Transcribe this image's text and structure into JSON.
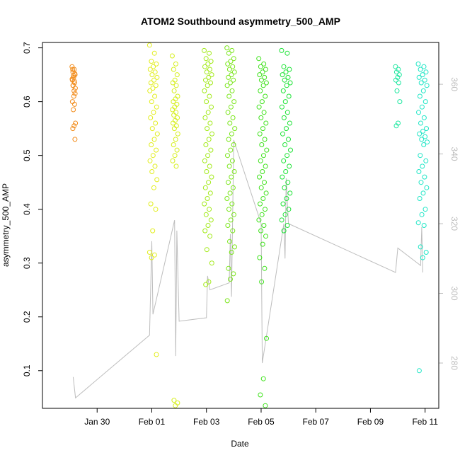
{
  "chart_data": {
    "type": "scatter",
    "title": "ATOM2 Southbound asymmetry_500_AMP",
    "xlabel": "Date",
    "ylabel": "asymmetry_500_AMP",
    "xlim": [
      "2025-01-28T00:00",
      "2025-02-11T12:00"
    ],
    "ylim": [
      0.03,
      0.71
    ],
    "x_ticks": [
      {
        "date": "2025-01-30",
        "label": "Jan 30"
      },
      {
        "date": "2025-02-01",
        "label": "Feb 01"
      },
      {
        "date": "2025-02-03",
        "label": "Feb 03"
      },
      {
        "date": "2025-02-05",
        "label": "Feb 05"
      },
      {
        "date": "2025-02-07",
        "label": "Feb 07"
      },
      {
        "date": "2025-02-09",
        "label": "Feb 09"
      },
      {
        "date": "2025-02-11",
        "label": "Feb 11"
      }
    ],
    "y_ticks": [
      0.1,
      0.2,
      0.3,
      0.4,
      0.5,
      0.6,
      0.7
    ],
    "y2_ticks": [
      280,
      300,
      320,
      340,
      360
    ],
    "y2lim": [
      267,
      372
    ],
    "clusters": [
      {
        "start": "2025-01-29T02:00",
        "end": "2025-01-29T05:00",
        "color": "#f28c1b",
        "values": [
          0.665,
          0.66,
          0.655,
          0.65,
          0.645,
          0.64,
          0.635,
          0.63,
          0.625,
          0.62,
          0.66,
          0.652,
          0.648,
          0.642,
          0.638,
          0.63,
          0.615,
          0.61,
          0.6,
          0.595,
          0.585,
          0.56,
          0.555,
          0.55,
          0.53
        ]
      },
      {
        "start": "2025-01-31T22:00",
        "end": "2025-02-01T05:00",
        "color": "#e2ee1e",
        "values": [
          0.705,
          0.69,
          0.675,
          0.67,
          0.665,
          0.66,
          0.655,
          0.65,
          0.645,
          0.64,
          0.635,
          0.63,
          0.625,
          0.62,
          0.61,
          0.6,
          0.59,
          0.58,
          0.57,
          0.56,
          0.55,
          0.54,
          0.53,
          0.52,
          0.51,
          0.5,
          0.49,
          0.48,
          0.47,
          0.455,
          0.44,
          0.41,
          0.4,
          0.36,
          0.32,
          0.315,
          0.31,
          0.13
        ]
      },
      {
        "start": "2025-02-01T18:00",
        "end": "2025-02-01T23:00",
        "color": "#d6ef1c",
        "values": [
          0.685,
          0.67,
          0.66,
          0.65,
          0.64,
          0.635,
          0.63,
          0.62,
          0.61,
          0.605,
          0.6,
          0.595,
          0.59,
          0.585,
          0.58,
          0.575,
          0.57,
          0.565,
          0.56,
          0.555,
          0.55,
          0.54,
          0.53,
          0.52,
          0.51,
          0.5,
          0.49,
          0.48,
          0.045,
          0.04,
          0.035
        ]
      },
      {
        "start": "2025-02-02T22:00",
        "end": "2025-02-03T05:00",
        "color": "#a2ea18",
        "values": [
          0.695,
          0.69,
          0.68,
          0.675,
          0.67,
          0.665,
          0.66,
          0.655,
          0.65,
          0.645,
          0.64,
          0.635,
          0.63,
          0.62,
          0.61,
          0.6,
          0.59,
          0.58,
          0.57,
          0.56,
          0.55,
          0.54,
          0.53,
          0.52,
          0.51,
          0.5,
          0.49,
          0.48,
          0.47,
          0.46,
          0.45,
          0.44,
          0.43,
          0.42,
          0.41,
          0.4,
          0.39,
          0.38,
          0.37,
          0.36,
          0.35,
          0.325,
          0.3,
          0.265,
          0.26
        ]
      },
      {
        "start": "2025-02-03T18:00",
        "end": "2025-02-04T01:00",
        "color": "#7ae61a",
        "values": [
          0.7,
          0.695,
          0.69,
          0.68,
          0.675,
          0.67,
          0.665,
          0.66,
          0.655,
          0.65,
          0.645,
          0.64,
          0.635,
          0.63,
          0.62,
          0.61,
          0.6,
          0.59,
          0.58,
          0.57,
          0.56,
          0.55,
          0.54,
          0.53,
          0.52,
          0.51,
          0.5,
          0.49,
          0.48,
          0.47,
          0.46,
          0.45,
          0.44,
          0.43,
          0.42,
          0.41,
          0.4,
          0.39,
          0.38,
          0.37,
          0.36,
          0.34,
          0.33,
          0.32,
          0.29,
          0.28,
          0.27,
          0.23
        ]
      },
      {
        "start": "2025-02-04T22:00",
        "end": "2025-02-05T05:00",
        "color": "#3fe21c",
        "values": [
          0.68,
          0.67,
          0.665,
          0.66,
          0.655,
          0.65,
          0.645,
          0.64,
          0.635,
          0.63,
          0.62,
          0.61,
          0.6,
          0.59,
          0.58,
          0.57,
          0.56,
          0.55,
          0.54,
          0.53,
          0.52,
          0.51,
          0.5,
          0.49,
          0.48,
          0.47,
          0.46,
          0.45,
          0.44,
          0.43,
          0.42,
          0.41,
          0.4,
          0.39,
          0.38,
          0.37,
          0.36,
          0.35,
          0.335,
          0.31,
          0.29,
          0.265,
          0.16,
          0.085,
          0.055,
          0.035
        ]
      },
      {
        "start": "2025-02-05T18:00",
        "end": "2025-02-06T02:00",
        "color": "#1de336",
        "values": [
          0.695,
          0.69,
          0.665,
          0.66,
          0.655,
          0.65,
          0.645,
          0.64,
          0.635,
          0.63,
          0.62,
          0.61,
          0.6,
          0.59,
          0.58,
          0.57,
          0.56,
          0.55,
          0.54,
          0.53,
          0.52,
          0.51,
          0.5,
          0.49,
          0.48,
          0.47,
          0.46,
          0.45,
          0.44,
          0.43,
          0.42,
          0.41,
          0.4,
          0.39,
          0.38,
          0.37,
          0.36
        ]
      },
      {
        "start": "2025-02-09T22:00",
        "end": "2025-02-10T02:00",
        "color": "#1de8a0",
        "values": [
          0.665,
          0.66,
          0.655,
          0.65,
          0.645,
          0.64,
          0.635,
          0.62,
          0.6,
          0.56,
          0.555
        ]
      },
      {
        "start": "2025-02-10T18:00",
        "end": "2025-02-11T02:00",
        "color": "#1fe6c6",
        "values": [
          0.67,
          0.665,
          0.66,
          0.655,
          0.65,
          0.645,
          0.64,
          0.635,
          0.63,
          0.62,
          0.61,
          0.6,
          0.59,
          0.58,
          0.57,
          0.56,
          0.55,
          0.545,
          0.54,
          0.535,
          0.53,
          0.525,
          0.52,
          0.5,
          0.49,
          0.48,
          0.47,
          0.46,
          0.45,
          0.44,
          0.43,
          0.42,
          0.4,
          0.39,
          0.375,
          0.37,
          0.33,
          0.32,
          0.31,
          0.1
        ]
      }
    ],
    "secondary_series": {
      "color": "#bdbdbd",
      "x": [
        "2025-01-29T03:00",
        "2025-01-29T05:00",
        "2025-01-31T22:00",
        "2025-02-01T00:00",
        "2025-02-01T01:00",
        "2025-02-01T20:00",
        "2025-02-01T21:00",
        "2025-02-01T22:00",
        "2025-02-02T00:00",
        "2025-02-03T00:00",
        "2025-02-03T01:00",
        "2025-02-03T03:00",
        "2025-02-03T20:00",
        "2025-02-03T21:00",
        "2025-02-03T22:00",
        "2025-02-04T00:00",
        "2025-02-05T00:00",
        "2025-02-05T01:00",
        "2025-02-05T20:00",
        "2025-02-05T21:00",
        "2025-02-05T22:00",
        "2025-02-06T00:00",
        "2025-02-09T22:00",
        "2025-02-10T00:00",
        "2025-02-10T20:00",
        "2025-02-10T21:00",
        "2025-02-10T22:00"
      ],
      "y": [
        276,
        270,
        288,
        315,
        294,
        321,
        282,
        318,
        292,
        293,
        305,
        301,
        303,
        317,
        299,
        344,
        320,
        280,
        320,
        310,
        333,
        320,
        306,
        313,
        308,
        319,
        306
      ]
    }
  }
}
